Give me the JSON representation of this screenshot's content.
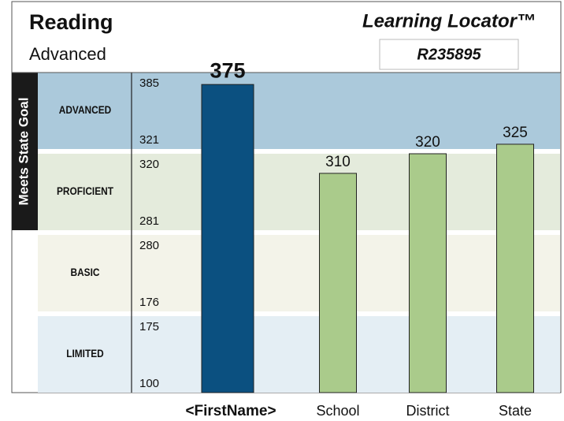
{
  "title": "Reading",
  "subtitle": "Advanced",
  "brand": "Learning Locator™",
  "student_id": "R235895",
  "chart_data": {
    "type": "bar",
    "side_label": "Meets State Goal",
    "bands": [
      {
        "name": "ADVANCED",
        "high": 385,
        "low": 321,
        "color": "#abc9db"
      },
      {
        "name": "PROFICIENT",
        "high": 320,
        "low": 281,
        "color": "#e4ebdc"
      },
      {
        "name": "BASIC",
        "high": 280,
        "low": 176,
        "color": "#f3f3e9"
      },
      {
        "name": "LIMITED",
        "high": 175,
        "low": 100,
        "color": "#e4eef4"
      }
    ],
    "categories": [
      "<FirstName>",
      "School",
      "District",
      "State"
    ],
    "values": [
      375,
      310,
      320,
      325
    ],
    "colors": [
      "#0b5080",
      "#aacb8b",
      "#aacb8b",
      "#aacb8b"
    ]
  }
}
